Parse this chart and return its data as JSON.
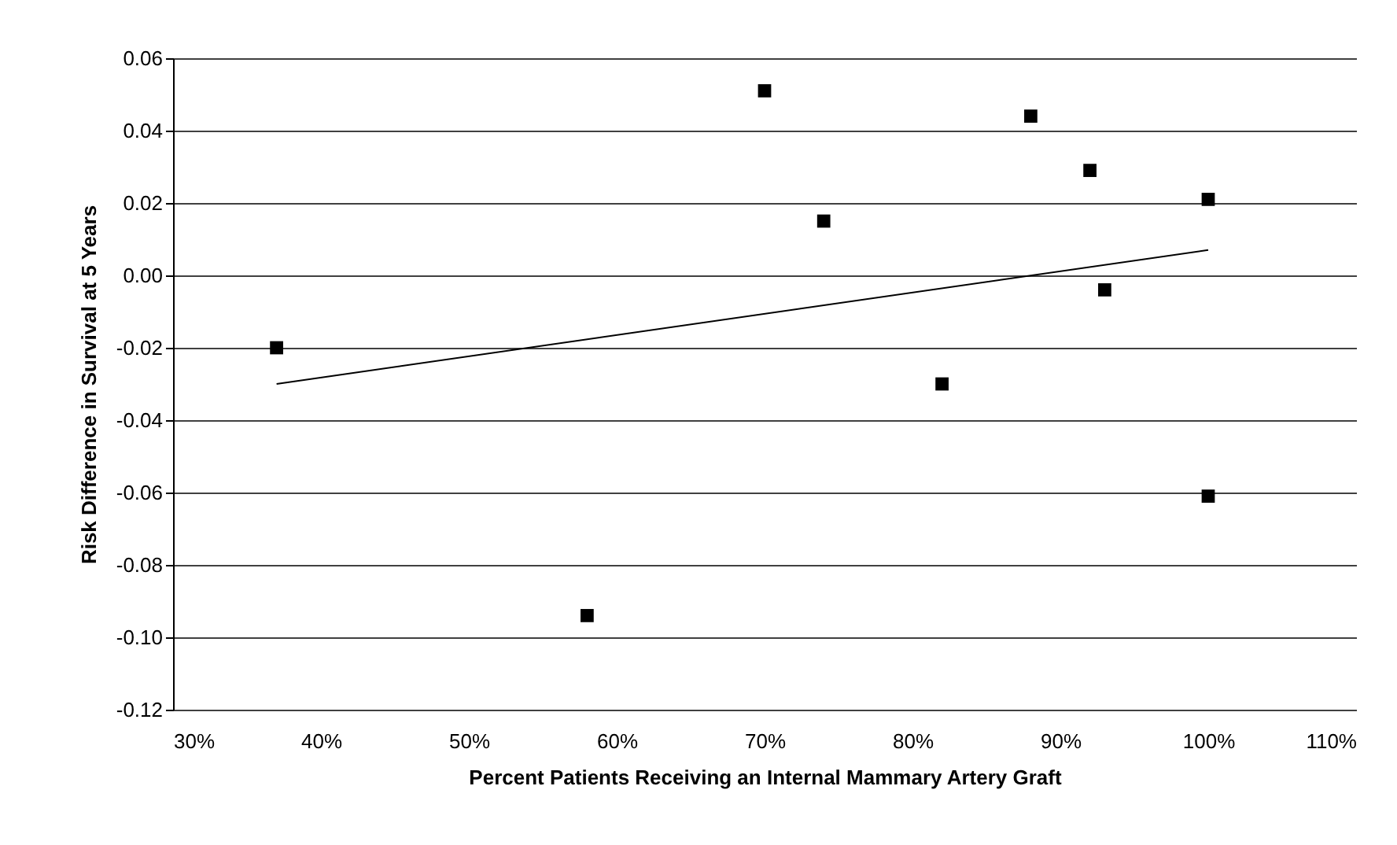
{
  "chart_data": {
    "type": "scatter",
    "xlabel": "Percent Patients Receiving an Internal Mammary Artery Graft",
    "ylabel": "Risk Difference in Survival at 5 Years",
    "x": [
      37,
      58,
      70,
      74,
      82,
      88,
      92,
      93,
      100,
      100
    ],
    "series": [
      {
        "color": "#000000",
        "marker": "square",
        "values": [
          -0.02,
          -0.094,
          0.051,
          0.015,
          -0.03,
          0.044,
          0.029,
          -0.004,
          0.021,
          -0.061
        ]
      },
      {
        "type": "line",
        "color": "#000000",
        "marker": "none",
        "line_style": "solid",
        "x": [
          37,
          100
        ],
        "values": [
          -0.03,
          0.007
        ]
      }
    ],
    "xlim": [
      30,
      110
    ],
    "xticks": [
      {
        "value": 30,
        "label": "30%"
      },
      {
        "value": 40,
        "label": "40%"
      },
      {
        "value": 50,
        "label": "50%"
      },
      {
        "value": 60,
        "label": "60%"
      },
      {
        "value": 70,
        "label": "70%"
      },
      {
        "value": 80,
        "label": "80%"
      },
      {
        "value": 90,
        "label": "90%"
      },
      {
        "value": 100,
        "label": "100%"
      },
      {
        "value": 110,
        "label": "110%"
      }
    ],
    "ylim": [
      -0.12,
      0.06
    ],
    "yticks": [
      {
        "value": -0.12,
        "label": "-0.12"
      },
      {
        "value": -0.1,
        "label": "-0.10"
      },
      {
        "value": -0.08,
        "label": "-0.08"
      },
      {
        "value": -0.06,
        "label": "-0.06"
      },
      {
        "value": -0.04,
        "label": "-0.04"
      },
      {
        "value": -0.02,
        "label": "-0.02"
      },
      {
        "value": 0,
        "label": "0.00"
      },
      {
        "value": 0.02,
        "label": "0.02"
      },
      {
        "value": 0.04,
        "label": "0.04"
      },
      {
        "value": 0.06,
        "label": "0.06"
      }
    ],
    "grid": "y"
  }
}
